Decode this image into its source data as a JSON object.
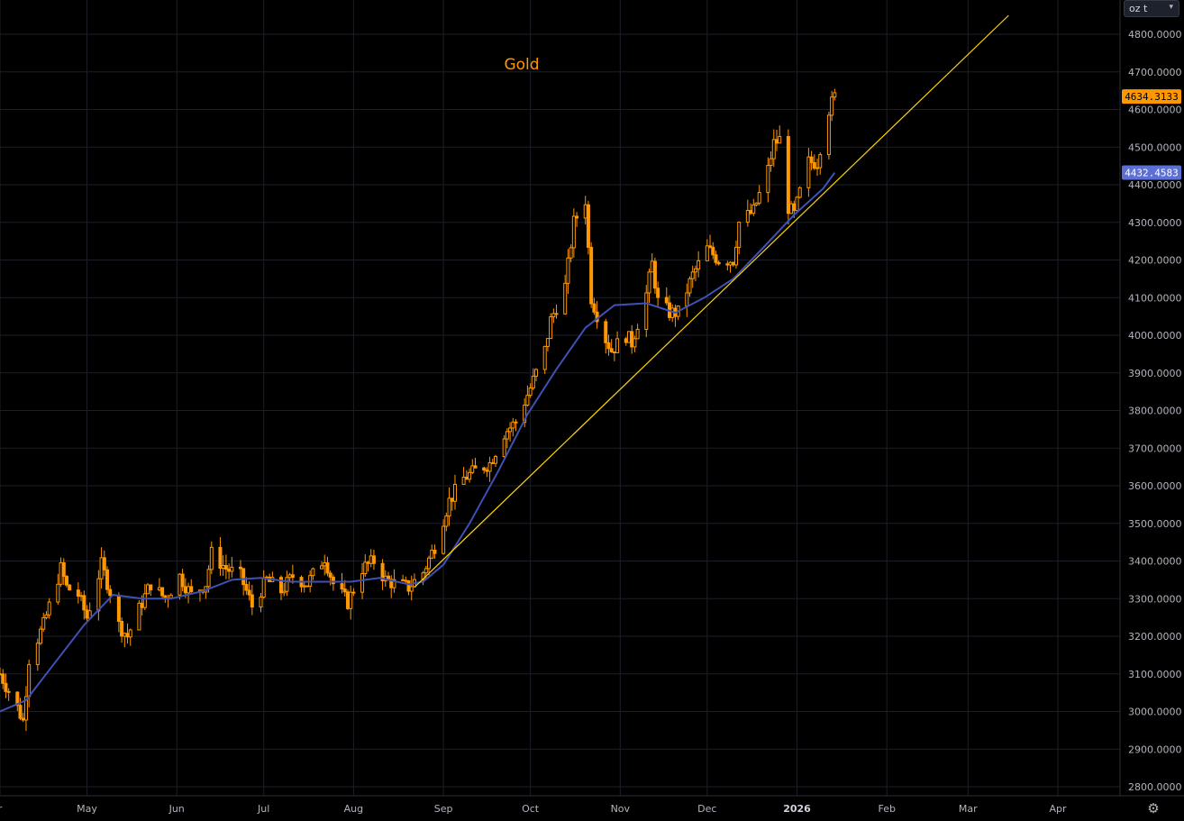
{
  "unit_selector": {
    "label": "oz t",
    "chevron_icon": "chevron-down-icon"
  },
  "settings_icon": "gear-icon",
  "chart_data": {
    "type": "candlestick",
    "title": "Gold",
    "ylim": [
      2750,
      4880
    ],
    "yticks": [
      "4800.0000",
      "4700.0000",
      "4600.0000",
      "4500.0000",
      "4400.0000",
      "4300.0000",
      "4200.0000",
      "4100.0000",
      "4000.0000",
      "3900.0000",
      "3800.0000",
      "3700.0000",
      "3600.0000",
      "3500.0000",
      "3400.0000",
      "3300.0000",
      "3200.0000",
      "3100.0000",
      "3000.0000",
      "2900.0000",
      "2800.0000"
    ],
    "xticks": [
      {
        "label": "r",
        "date": "2025-04-01"
      },
      {
        "label": "May",
        "date": "2025-05-01"
      },
      {
        "label": "Jun",
        "date": "2025-06-01"
      },
      {
        "label": "Jul",
        "date": "2025-07-01"
      },
      {
        "label": "Aug",
        "date": "2025-08-01"
      },
      {
        "label": "Sep",
        "date": "2025-09-01"
      },
      {
        "label": "Oct",
        "date": "2025-10-01"
      },
      {
        "label": "Nov",
        "date": "2025-11-01"
      },
      {
        "label": "Dec",
        "date": "2025-12-01"
      },
      {
        "label": "2026",
        "date": "2026-01-01",
        "bold": true
      },
      {
        "label": "Feb",
        "date": "2026-02-01"
      },
      {
        "label": "Mar",
        "date": "2026-03-01"
      },
      {
        "label": "Apr",
        "date": "2026-04-01"
      }
    ],
    "grid": true,
    "last_price": {
      "label": "4634.3133",
      "value": 4634.31
    },
    "moving_average_last": {
      "label": "4432.4583",
      "value": 4432.46
    },
    "price_path": [
      [
        "2025-04-01",
        3100
      ],
      [
        "2025-04-07",
        3010
      ],
      [
        "2025-04-09",
        2975
      ],
      [
        "2025-04-11",
        3140
      ],
      [
        "2025-04-16",
        3230
      ],
      [
        "2025-04-18",
        3280
      ],
      [
        "2025-04-22",
        3380
      ],
      [
        "2025-04-24",
        3330
      ],
      [
        "2025-04-28",
        3310
      ],
      [
        "2025-05-01",
        3250
      ],
      [
        "2025-05-06",
        3390
      ],
      [
        "2025-05-09",
        3320
      ],
      [
        "2025-05-12",
        3230
      ],
      [
        "2025-05-15",
        3200
      ],
      [
        "2025-05-20",
        3290
      ],
      [
        "2025-05-23",
        3340
      ],
      [
        "2025-05-28",
        3300
      ],
      [
        "2025-06-02",
        3360
      ],
      [
        "2025-06-06",
        3310
      ],
      [
        "2025-06-11",
        3340
      ],
      [
        "2025-06-13",
        3420
      ],
      [
        "2025-06-18",
        3380
      ],
      [
        "2025-06-23",
        3360
      ],
      [
        "2025-06-27",
        3280
      ],
      [
        "2025-07-02",
        3350
      ],
      [
        "2025-07-07",
        3320
      ],
      [
        "2025-07-11",
        3360
      ],
      [
        "2025-07-16",
        3340
      ],
      [
        "2025-07-22",
        3410
      ],
      [
        "2025-07-25",
        3340
      ],
      [
        "2025-07-30",
        3290
      ],
      [
        "2025-08-04",
        3380
      ],
      [
        "2025-08-08",
        3400
      ],
      [
        "2025-08-12",
        3350
      ],
      [
        "2025-08-15",
        3340
      ],
      [
        "2025-08-20",
        3330
      ],
      [
        "2025-08-25",
        3370
      ],
      [
        "2025-08-29",
        3440
      ],
      [
        "2025-09-03",
        3560
      ],
      [
        "2025-09-08",
        3620
      ],
      [
        "2025-09-12",
        3640
      ],
      [
        "2025-09-17",
        3660
      ],
      [
        "2025-09-22",
        3740
      ],
      [
        "2025-09-26",
        3770
      ],
      [
        "2025-10-01",
        3860
      ],
      [
        "2025-10-06",
        3960
      ],
      [
        "2025-10-08",
        4040
      ],
      [
        "2025-10-13",
        4130
      ],
      [
        "2025-10-16",
        4300
      ],
      [
        "2025-10-20",
        4360
      ],
      [
        "2025-10-22",
        4100
      ],
      [
        "2025-10-27",
        3990
      ],
      [
        "2025-10-29",
        3960
      ],
      [
        "2025-11-03",
        4000
      ],
      [
        "2025-11-05",
        3980
      ],
      [
        "2025-11-10",
        4110
      ],
      [
        "2025-11-12",
        4190
      ],
      [
        "2025-11-14",
        4090
      ],
      [
        "2025-11-18",
        4060
      ],
      [
        "2025-11-21",
        4060
      ],
      [
        "2025-11-26",
        4160
      ],
      [
        "2025-12-01",
        4230
      ],
      [
        "2025-12-05",
        4200
      ],
      [
        "2025-12-10",
        4200
      ],
      [
        "2025-12-12",
        4300
      ],
      [
        "2025-12-17",
        4330
      ],
      [
        "2025-12-22",
        4440
      ],
      [
        "2025-12-24",
        4510
      ],
      [
        "2025-12-26",
        4520
      ],
      [
        "2025-12-29",
        4340
      ],
      [
        "2025-12-31",
        4320
      ],
      [
        "2026-01-02",
        4380
      ],
      [
        "2026-01-05",
        4460
      ],
      [
        "2026-01-08",
        4460
      ],
      [
        "2026-01-09",
        4500
      ],
      [
        "2026-01-12",
        4600
      ],
      [
        "2026-01-14",
        4634
      ]
    ],
    "moving_average": [
      [
        "2025-04-01",
        3000
      ],
      [
        "2025-04-10",
        3030
      ],
      [
        "2025-04-20",
        3130
      ],
      [
        "2025-04-30",
        3230
      ],
      [
        "2025-05-10",
        3310
      ],
      [
        "2025-05-20",
        3300
      ],
      [
        "2025-05-30",
        3300
      ],
      [
        "2025-06-10",
        3320
      ],
      [
        "2025-06-20",
        3350
      ],
      [
        "2025-06-30",
        3355
      ],
      [
        "2025-07-10",
        3345
      ],
      [
        "2025-07-20",
        3345
      ],
      [
        "2025-07-31",
        3345
      ],
      [
        "2025-08-10",
        3355
      ],
      [
        "2025-08-20",
        3338
      ],
      [
        "2025-08-25",
        3345
      ],
      [
        "2025-09-01",
        3390
      ],
      [
        "2025-09-10",
        3500
      ],
      [
        "2025-09-20",
        3640
      ],
      [
        "2025-09-30",
        3790
      ],
      [
        "2025-10-10",
        3910
      ],
      [
        "2025-10-20",
        4020
      ],
      [
        "2025-10-30",
        4080
      ],
      [
        "2025-11-10",
        4085
      ],
      [
        "2025-11-20",
        4060
      ],
      [
        "2025-11-30",
        4100
      ],
      [
        "2025-12-10",
        4150
      ],
      [
        "2025-12-20",
        4230
      ],
      [
        "2025-12-31",
        4320
      ],
      [
        "2026-01-10",
        4390
      ],
      [
        "2026-01-14",
        4432
      ]
    ],
    "trendline": {
      "start": [
        "2025-08-22",
        3330
      ],
      "end": [
        "2026-03-15",
        4850
      ]
    }
  }
}
